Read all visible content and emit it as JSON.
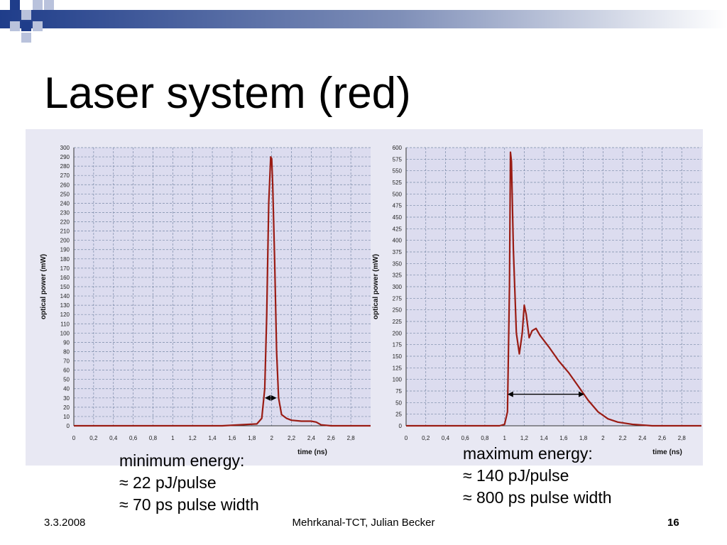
{
  "slide": {
    "title": "Laser system (red)",
    "footer_date": "3.3.2008",
    "footer_center": "Mehrkanal-TCT, Julian Becker",
    "page_number": "16"
  },
  "captions": {
    "left": {
      "heading": "minimum energy:",
      "lines": [
        "≈ 22 pJ/pulse",
        "≈ 70 ps pulse width"
      ]
    },
    "right": {
      "heading": "maximum energy:",
      "lines": [
        "≈ 140 pJ/pulse",
        "≈ 800 ps pulse width"
      ]
    }
  },
  "colors": {
    "curve": "#9a1c14",
    "grid": "#7a8aa8",
    "panel": "#e8e8f3",
    "plot_bg": "#dcdcef",
    "title_bar": "#1f3d8a"
  },
  "chart_data": [
    {
      "type": "line",
      "title": "",
      "xlabel": "time (ns)",
      "ylabel": "optical power (mW)",
      "xlim": [
        0,
        3.0
      ],
      "ylim": [
        0,
        300
      ],
      "xticks": [
        "0",
        "0,2",
        "0,4",
        "0,6",
        "0,8",
        "1",
        "1,2",
        "1,4",
        "1,6",
        "1,8",
        "2",
        "2,2",
        "2,4",
        "2,6",
        "2,8"
      ],
      "yticks": [
        "0",
        "10",
        "20",
        "30",
        "40",
        "50",
        "60",
        "70",
        "80",
        "90",
        "100",
        "110",
        "120",
        "130",
        "140",
        "150",
        "160",
        "170",
        "180",
        "190",
        "200",
        "210",
        "220",
        "230",
        "240",
        "250",
        "260",
        "270",
        "280",
        "290",
        "300"
      ],
      "grid": true,
      "series": [
        {
          "x": [
            0,
            0.5,
            1.0,
            1.5,
            1.85,
            1.9,
            1.93,
            1.95,
            1.97,
            1.99,
            2.0,
            2.01,
            2.03,
            2.05,
            2.07,
            2.1,
            2.15,
            2.2,
            2.3,
            2.4,
            2.45,
            2.5,
            2.6,
            2.8,
            3.0
          ],
          "y": [
            0,
            0,
            0,
            0,
            2,
            8,
            40,
            120,
            240,
            290,
            288,
            260,
            180,
            80,
            30,
            12,
            8,
            6,
            5,
            5,
            4,
            1,
            0,
            0,
            0
          ]
        }
      ],
      "annotations": [
        {
          "type": "double-arrow",
          "x": [
            1.93,
            2.05
          ],
          "y": 30
        }
      ]
    },
    {
      "type": "line",
      "title": "",
      "xlabel": "time (ns)",
      "ylabel": "optical power (mW)",
      "xlim": [
        0,
        3.0
      ],
      "ylim": [
        0,
        600
      ],
      "xticks": [
        "0",
        "0,2",
        "0,4",
        "0,6",
        "0,8",
        "1",
        "1,2",
        "1,4",
        "1,6",
        "1,8",
        "2",
        "2,2",
        "2,4",
        "2,6",
        "2,8"
      ],
      "yticks": [
        "0",
        "25",
        "50",
        "75",
        "100",
        "125",
        "150",
        "175",
        "200",
        "225",
        "250",
        "275",
        "300",
        "325",
        "350",
        "375",
        "400",
        "425",
        "450",
        "475",
        "500",
        "525",
        "550",
        "575",
        "600"
      ],
      "grid": true,
      "series": [
        {
          "x": [
            0,
            0.5,
            0.95,
            1.0,
            1.03,
            1.05,
            1.06,
            1.07,
            1.09,
            1.12,
            1.15,
            1.18,
            1.2,
            1.22,
            1.25,
            1.28,
            1.32,
            1.36,
            1.45,
            1.55,
            1.65,
            1.75,
            1.85,
            1.95,
            2.05,
            2.15,
            2.3,
            2.5,
            2.8,
            3.0
          ],
          "y": [
            0,
            0,
            0,
            3,
            30,
            300,
            590,
            570,
            380,
            200,
            155,
            200,
            260,
            240,
            190,
            205,
            210,
            195,
            170,
            140,
            115,
            85,
            55,
            30,
            15,
            8,
            3,
            0,
            0,
            0
          ]
        }
      ],
      "annotations": [
        {
          "type": "double-arrow",
          "x": [
            1.03,
            1.81
          ],
          "y": 68
        }
      ]
    }
  ]
}
